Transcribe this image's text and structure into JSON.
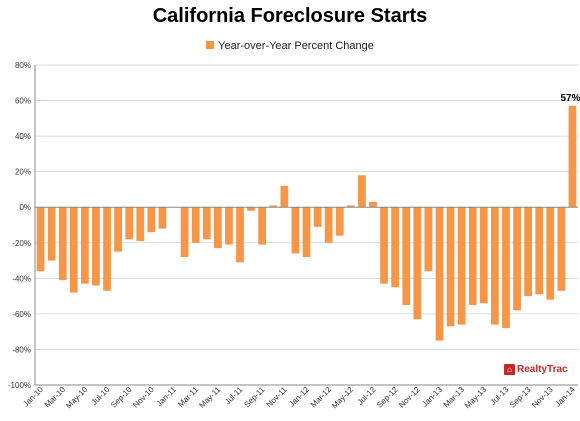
{
  "title": "California Foreclosure Starts",
  "legend": {
    "label": "Year-over-Year Percent Change",
    "color": "#F79646"
  },
  "logo": {
    "text": "RealtyTrac",
    "icon": "house-icon"
  },
  "chart_data": {
    "type": "bar",
    "title": "California Foreclosure Starts",
    "xlabel": "",
    "ylabel": "",
    "ylim": [
      -100,
      80
    ],
    "yticks": [
      80,
      60,
      40,
      20,
      0,
      -20,
      -40,
      -60,
      -80,
      -100
    ],
    "ytick_labels": [
      "80%",
      "60%",
      "40%",
      "20%",
      "0%",
      "-20%",
      "-40%",
      "-60%",
      "-80%",
      "-100%"
    ],
    "grid": true,
    "legend_position": "top-center",
    "bar_color": "#F79646",
    "categories": [
      "Jan-10",
      "Feb-10",
      "Mar-10",
      "Apr-10",
      "May-10",
      "Jun-10",
      "Jul-10",
      "Aug-10",
      "Sep-10",
      "Oct-10",
      "Nov-10",
      "Dec-10",
      "Jan-11",
      "Feb-11",
      "Mar-11",
      "Apr-11",
      "May-11",
      "Jun-11",
      "Jul-11",
      "Aug-11",
      "Sep-11",
      "Oct-11",
      "Nov-11",
      "Dec-11",
      "Jan-12",
      "Feb-12",
      "Mar-12",
      "Apr-12",
      "May-12",
      "Jun-12",
      "Jul-12",
      "Aug-12",
      "Sep-12",
      "Oct-12",
      "Nov-12",
      "Dec-12",
      "Jan-13",
      "Feb-13",
      "Mar-13",
      "Apr-13",
      "May-13",
      "Jun-13",
      "Jul-13",
      "Aug-13",
      "Sep-13",
      "Oct-13",
      "Nov-13",
      "Dec-13",
      "Jan-14"
    ],
    "xtick_labels": [
      "Jan-10",
      "Mar-10",
      "May-10",
      "Jul-10",
      "Sep-10",
      "Nov-10",
      "Jan-11",
      "Mar-11",
      "May-11",
      "Jul-11",
      "Sep-11",
      "Nov-11",
      "Jan-12",
      "Mar-12",
      "May-12",
      "Jul-12",
      "Sep-12",
      "Nov-12",
      "Jan-13",
      "Mar-13",
      "May-13",
      "Jul-13",
      "Sep-13",
      "Nov-13",
      "Jan-14"
    ],
    "series": [
      {
        "name": "Year-over-Year Percent Change",
        "values": [
          -36,
          -30,
          -41,
          -48,
          -43,
          -44,
          -47,
          -25,
          -18,
          -19,
          -14,
          -12,
          null,
          -28,
          -20,
          -18,
          -23,
          -21,
          -31,
          -2,
          -21,
          1,
          12,
          -26,
          -28,
          -11,
          -20,
          -16,
          1,
          18,
          3,
          -43,
          -45,
          -55,
          -63,
          -36,
          -75,
          -67,
          -66,
          -55,
          -54,
          -66,
          -68,
          -58,
          -50,
          -49,
          -52,
          -47,
          57
        ]
      }
    ],
    "data_labels": [
      {
        "index": 48,
        "text": "57%"
      }
    ]
  }
}
